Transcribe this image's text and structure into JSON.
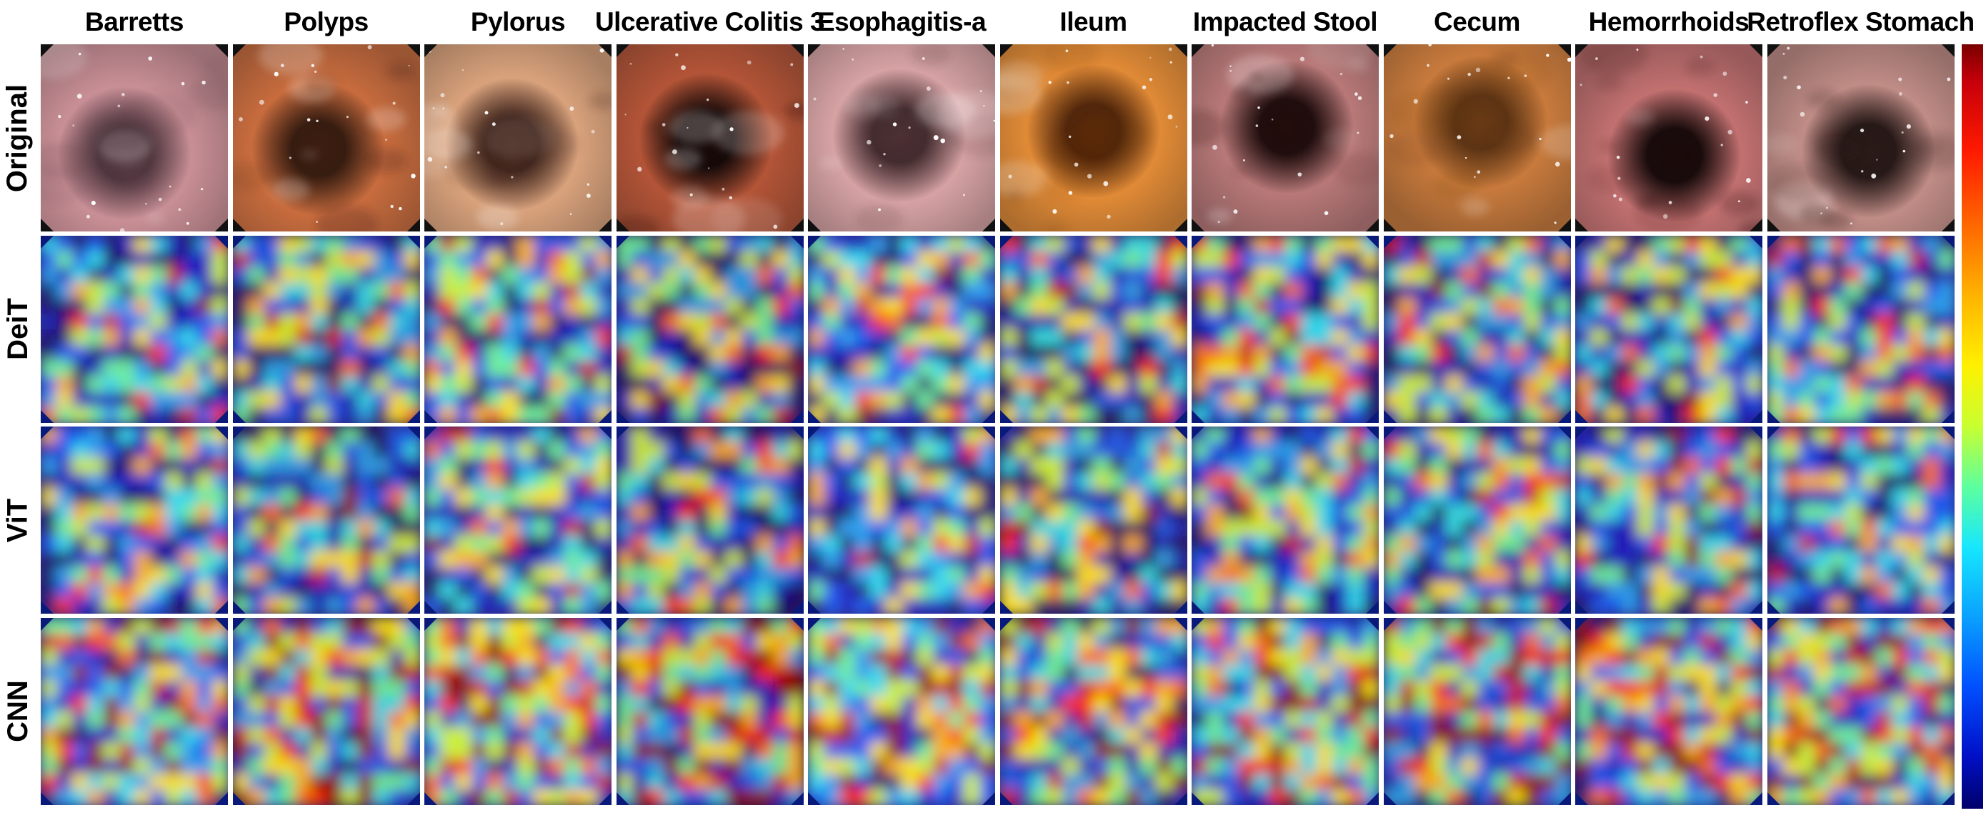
{
  "columns": [
    {
      "label": "Barretts",
      "hue": "#c98f96",
      "lumen": "#5a3c46"
    },
    {
      "label": "Polyps",
      "hue": "#c86c3e",
      "lumen": "#3d1e10"
    },
    {
      "label": "Pylorus",
      "hue": "#d9a27c",
      "lumen": "#4a2a20"
    },
    {
      "label": "Ulcerative Colitis 3",
      "hue": "#b35437",
      "lumen": "#160807"
    },
    {
      "label": "Esophagitis-a",
      "hue": "#d6a2a4",
      "lumen": "#4c3034"
    },
    {
      "label": "Ileum",
      "hue": "#e08a36",
      "lumen": "#5c2a0a"
    },
    {
      "label": "Impacted Stool",
      "hue": "#b87878",
      "lumen": "#220c0c"
    },
    {
      "label": "Cecum",
      "hue": "#c87a3c",
      "lumen": "#6a3a14"
    },
    {
      "label": "Hemorrhoids",
      "hue": "#c27070",
      "lumen": "#1a0a0a"
    },
    {
      "label": "Retroflex Stomach",
      "hue": "#c08c86",
      "lumen": "#2a1a18"
    }
  ],
  "rows": [
    {
      "label": "Original",
      "type": "image"
    },
    {
      "label": "DeiT",
      "type": "heatmap"
    },
    {
      "label": "ViT",
      "type": "heatmap"
    },
    {
      "label": "CNN",
      "type": "heatmap"
    }
  ],
  "colormap": {
    "name": "jet",
    "colors": [
      "#00006a",
      "#0010c8",
      "#0050ff",
      "#0aa0ff",
      "#16e6ff",
      "#5cffa0",
      "#c8ff30",
      "#fff000",
      "#ffb400",
      "#ff6a00",
      "#ff1a00",
      "#c8000a",
      "#7a0000"
    ]
  }
}
